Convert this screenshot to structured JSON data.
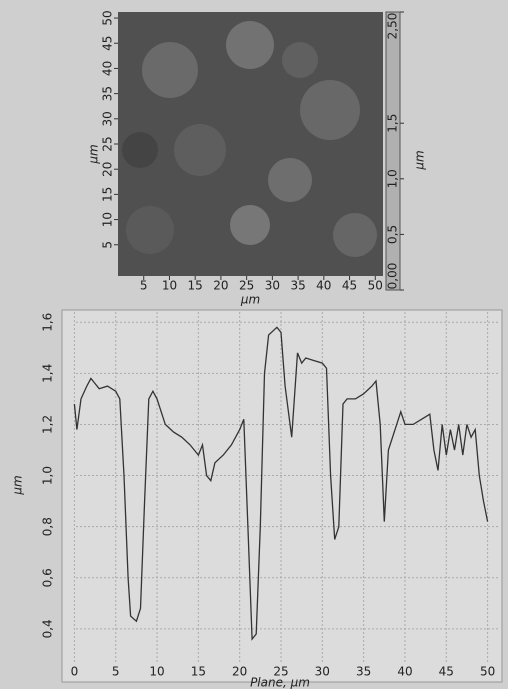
{
  "chart_data": [
    {
      "type": "image",
      "xlabel": "μm",
      "ylabel": "μm",
      "xlim": [
        0,
        51.5
      ],
      "ylim": [
        -1.2,
        51.2
      ],
      "xticks": [
        5,
        10,
        15,
        20,
        25,
        30,
        35,
        40,
        45,
        50
      ],
      "yticks": [
        5,
        10,
        15,
        20,
        25,
        30,
        35,
        40,
        45,
        50
      ],
      "colorbar": {
        "label": "μm",
        "lim": [
          0,
          2.5
        ],
        "ticks": [
          {
            "value": 0,
            "label": "0,00"
          },
          {
            "value": 0.5,
            "label": "0,5"
          },
          {
            "value": 1.0,
            "label": "1,0"
          },
          {
            "value": 1.5,
            "label": "1,5"
          },
          {
            "value": 2.5,
            "label": "2,50"
          }
        ]
      }
    },
    {
      "type": "line",
      "xlabel": "Plane, μm",
      "ylabel": "μm",
      "grid": true,
      "xlim": [
        -1.5,
        51.5
      ],
      "ylim": [
        0.2,
        1.64
      ],
      "xticks": [
        0,
        5,
        10,
        15,
        20,
        25,
        30,
        35,
        40,
        45,
        50
      ],
      "yticks": [
        {
          "value": 0.4,
          "label": "0,4"
        },
        {
          "value": 0.6,
          "label": "0,6"
        },
        {
          "value": 0.8,
          "label": "0,8"
        },
        {
          "value": 1.0,
          "label": "1,0"
        },
        {
          "value": 1.2,
          "label": "1,2"
        },
        {
          "value": 1.4,
          "label": "1,4"
        },
        {
          "value": 1.6,
          "label": "1,6"
        }
      ],
      "x": [
        0,
        0.3,
        0.8,
        1.5,
        2,
        2.5,
        3,
        4,
        5,
        5.5,
        6,
        6.5,
        6.8,
        7.5,
        8,
        8.5,
        9,
        9.5,
        10,
        11,
        12,
        13,
        14,
        15,
        15.5,
        16,
        16.5,
        17,
        18,
        19,
        20,
        20.5,
        21,
        21.5,
        22,
        22.5,
        23,
        23.5,
        24.5,
        25,
        25.5,
        26.3,
        27,
        27.5,
        28,
        29,
        30,
        30.5,
        31,
        31.5,
        32,
        32.5,
        33,
        34,
        35,
        36,
        36.5,
        37,
        37.5,
        38,
        39,
        39.5,
        40,
        41,
        42,
        43,
        43.5,
        44,
        44.5,
        45,
        45.5,
        46,
        46.5,
        47,
        47.5,
        48,
        48.5,
        49,
        49.5,
        50
      ],
      "series": [
        {
          "color": "#333333",
          "values": [
            1.28,
            1.18,
            1.3,
            1.35,
            1.38,
            1.36,
            1.34,
            1.35,
            1.33,
            1.3,
            1.0,
            0.6,
            0.45,
            0.43,
            0.48,
            0.9,
            1.3,
            1.33,
            1.3,
            1.2,
            1.17,
            1.15,
            1.12,
            1.08,
            1.12,
            1.0,
            0.98,
            1.05,
            1.08,
            1.12,
            1.18,
            1.22,
            0.8,
            0.36,
            0.38,
            0.8,
            1.4,
            1.55,
            1.58,
            1.56,
            1.35,
            1.15,
            1.48,
            1.44,
            1.46,
            1.45,
            1.44,
            1.42,
            1.0,
            0.75,
            0.8,
            1.28,
            1.3,
            1.3,
            1.32,
            1.35,
            1.37,
            1.2,
            0.82,
            1.1,
            1.2,
            1.25,
            1.2,
            1.2,
            1.22,
            1.24,
            1.1,
            1.02,
            1.2,
            1.08,
            1.18,
            1.1,
            1.2,
            1.08,
            1.2,
            1.15,
            1.18,
            1.0,
            0.9,
            0.82
          ]
        }
      ]
    }
  ]
}
